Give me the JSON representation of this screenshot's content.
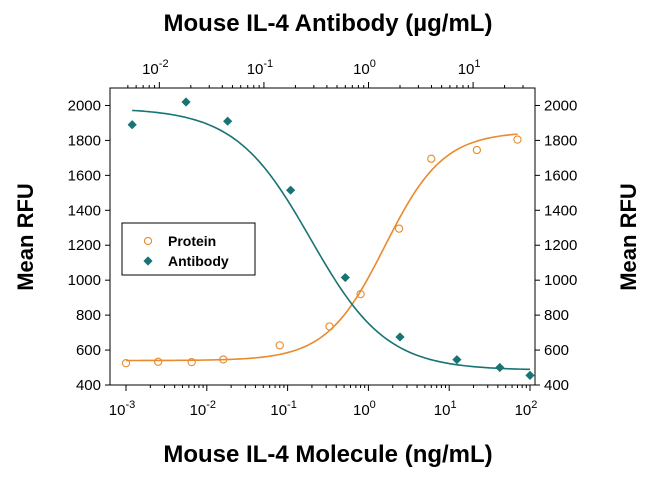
{
  "chart_data": {
    "type": "scatter",
    "title": "Mouse IL-4 Antibody (µg/mL)",
    "xlabel": "Mouse IL-4 Molecule (ng/mL)",
    "ylabel": "Mean RFU",
    "ylabel_right": "Mean RFU",
    "x_scale": "log",
    "xlim": [
      0.001,
      100
    ],
    "ylim": [
      400,
      2100
    ],
    "y_ticks": [
      400,
      600,
      800,
      1000,
      1200,
      1400,
      1600,
      1800,
      2000
    ],
    "x_ticks": [
      {
        "value": 0.001,
        "base": "10",
        "exp": "-3"
      },
      {
        "value": 0.01,
        "base": "10",
        "exp": "-2"
      },
      {
        "value": 0.1,
        "base": "10",
        "exp": "-1"
      },
      {
        "value": 1,
        "base": "10",
        "exp": "0"
      },
      {
        "value": 10,
        "base": "10",
        "exp": "1"
      },
      {
        "value": 100,
        "base": "10",
        "exp": "2"
      }
    ],
    "top_axis": {
      "label": "Mouse IL-4 Antibody (µg/mL)",
      "scale": "log",
      "xlim": [
        0.0048,
        35
      ],
      "ticks": [
        {
          "value": 0.01,
          "base": "10",
          "exp": "-2"
        },
        {
          "value": 0.1,
          "base": "10",
          "exp": "-1"
        },
        {
          "value": 1,
          "base": "10",
          "exp": "0"
        },
        {
          "value": 10,
          "base": "10",
          "exp": "1"
        }
      ]
    },
    "legend": {
      "placement": "middle-left",
      "box": true
    },
    "grid": false,
    "series": [
      {
        "name": "Protein",
        "marker": "open-circle",
        "color": "#E98A2C",
        "axis": "bottom",
        "points": [
          {
            "x": 0.001,
            "y": 525
          },
          {
            "x": 0.0025,
            "y": 533
          },
          {
            "x": 0.0065,
            "y": 531
          },
          {
            "x": 0.016,
            "y": 546
          },
          {
            "x": 0.08,
            "y": 627
          },
          {
            "x": 0.33,
            "y": 735
          },
          {
            "x": 0.8,
            "y": 920
          },
          {
            "x": 2.4,
            "y": 1295
          },
          {
            "x": 6,
            "y": 1695
          },
          {
            "x": 22,
            "y": 1745
          },
          {
            "x": 70,
            "y": 1805
          }
        ],
        "fit": {
          "bottom": 540,
          "top": 1850,
          "ec50": 1.6,
          "hill": 1.2
        }
      },
      {
        "name": "Antibody",
        "marker": "filled-diamond",
        "color": "#1A7373",
        "axis": "top",
        "points": [
          {
            "x": 0.0055,
            "y": 1890
          },
          {
            "x": 0.018,
            "y": 2020
          },
          {
            "x": 0.045,
            "y": 1910
          },
          {
            "x": 0.18,
            "y": 1515
          },
          {
            "x": 0.6,
            "y": 1015
          },
          {
            "x": 2.0,
            "y": 675
          },
          {
            "x": 7.0,
            "y": 545
          },
          {
            "x": 18,
            "y": 500
          },
          {
            "x": 35,
            "y": 455
          }
        ],
        "fit": {
          "bottom": 485,
          "top": 1985,
          "ec50": 0.28,
          "hill": -1.2
        }
      }
    ]
  }
}
